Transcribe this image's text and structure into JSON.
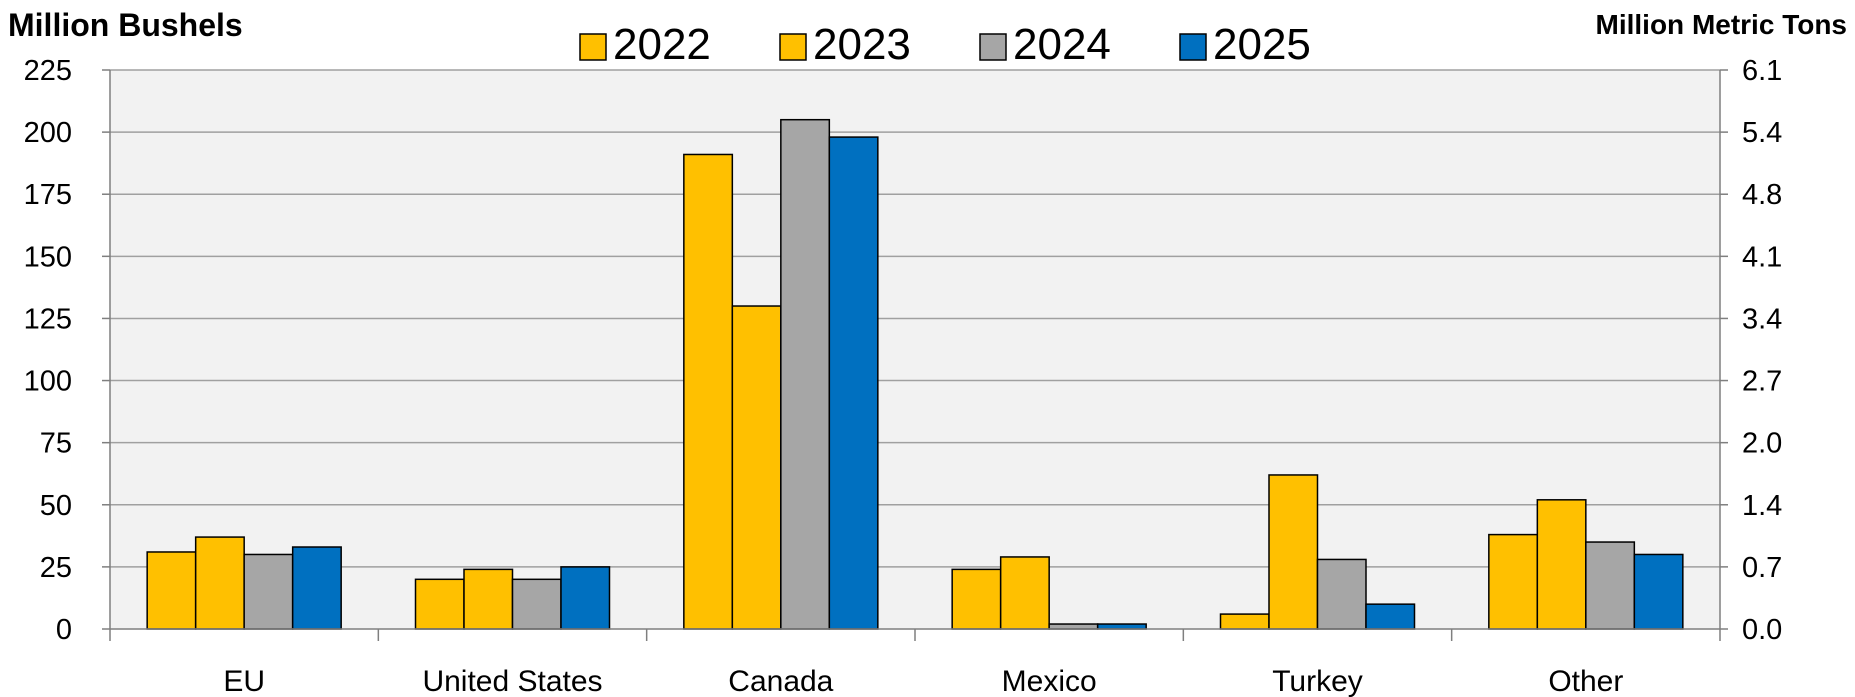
{
  "chart_data": {
    "type": "bar",
    "y_left_label": "Million Bushels",
    "y_right_label": "Million Metric Tons",
    "categories": [
      "EU",
      "United States",
      "Canada",
      "Mexico",
      "Turkey",
      "Other"
    ],
    "series": [
      {
        "name": "2022",
        "color": "#FFC000",
        "values": [
          31,
          20,
          191,
          24,
          6,
          38
        ]
      },
      {
        "name": "2023",
        "color": "#FFC000",
        "values": [
          37,
          24,
          130,
          29,
          62,
          52
        ]
      },
      {
        "name": "2024",
        "color": "#A6A6A6",
        "values": [
          30,
          20,
          205,
          2,
          28,
          35
        ]
      },
      {
        "name": "2025",
        "color": "#0070C0",
        "values": [
          33,
          25,
          198,
          2,
          10,
          30
        ]
      }
    ],
    "y_left_ticks": [
      "0",
      "25",
      "50",
      "75",
      "100",
      "125",
      "150",
      "175",
      "200",
      "225"
    ],
    "y_right_ticks": [
      "0.0",
      "0.7",
      "1.4",
      "2.0",
      "2.7",
      "3.4",
      "4.1",
      "4.8",
      "5.4",
      "6.1"
    ],
    "ylim": [
      0,
      225
    ],
    "grid": true,
    "legend_position": "top-center",
    "plot_background": "#F2F2F2"
  }
}
